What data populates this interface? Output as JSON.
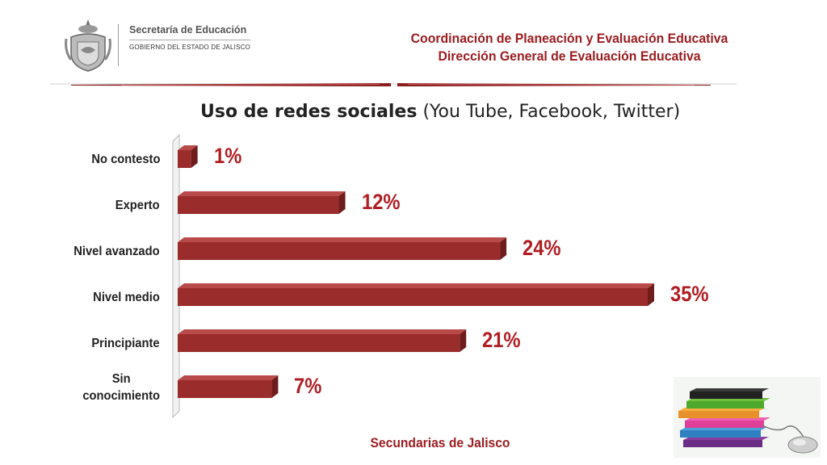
{
  "header": {
    "org_name": "Secretaría de Educación",
    "org_sub": "GOBIERNO DEL ESTADO DE JALISCO",
    "line1": "Coordinación de Planeación y Evaluación Educativa",
    "line2": "Dirección General de Evaluación Educativa"
  },
  "footer": {
    "text": "Secundarias de Jalisco"
  },
  "colors": {
    "bar": "#9b2c2c",
    "bar_top": "#b94a4a",
    "bar_side": "#6e1c1c",
    "accent": "#9b1c1f",
    "value": "#b01e23"
  },
  "icons": {
    "emblem": "jalisco-coat-of-arms-icon",
    "decoration": "books-and-mouse-icon"
  },
  "chart_data": {
    "type": "bar",
    "orientation": "horizontal",
    "title_bold": "Uso de redes sociales",
    "title_rest": " (You Tube, Facebook, Twitter)",
    "categories": [
      "No contesto",
      "Experto",
      "Nivel avanzado",
      "Nivel medio",
      "Principiante",
      "Sin conocimiento"
    ],
    "values": [
      1,
      12,
      24,
      35,
      21,
      7
    ],
    "value_labels": [
      "1%",
      "12%",
      "24%",
      "35%",
      "21%",
      "7%"
    ],
    "xlim": [
      0,
      35
    ],
    "grid": false,
    "legend": "none"
  }
}
